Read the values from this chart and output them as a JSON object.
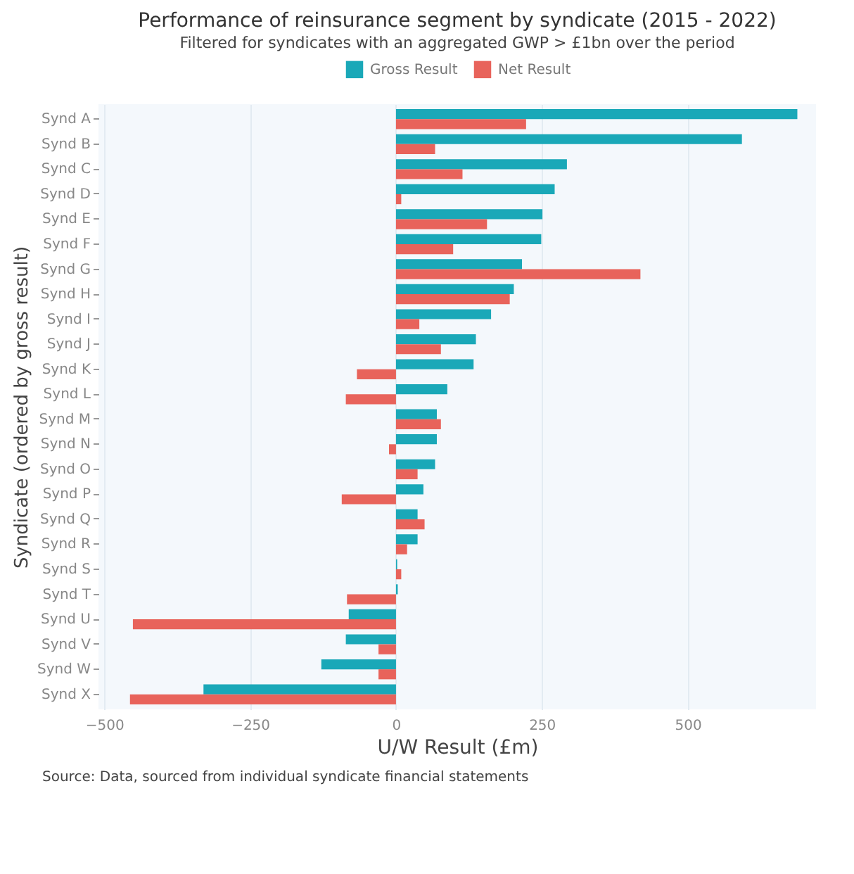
{
  "chart_data": {
    "type": "bar",
    "orientation": "horizontal",
    "title": "Performance of reinsurance segment by syndicate (2015 - 2022)",
    "subtitle": "Filtered for syndicates with an aggregated GWP > £1bn over the period",
    "xlabel": "U/W Result (£m)",
    "ylabel": "Syndicate (ordered by gross result)",
    "categories": [
      "Synd A",
      "Synd B",
      "Synd C",
      "Synd D",
      "Synd E",
      "Synd F",
      "Synd G",
      "Synd H",
      "Synd I",
      "Synd J",
      "Synd K",
      "Synd L",
      "Synd M",
      "Synd N",
      "Synd O",
      "Synd P",
      "Synd Q",
      "Synd R",
      "Synd S",
      "Synd T",
      "Synd U",
      "Synd V",
      "Synd W",
      "Synd X"
    ],
    "series": [
      {
        "name": "Gross Result",
        "color": "#1aa8b8",
        "values": [
          688,
          593,
          293,
          272,
          251,
          249,
          216,
          202,
          163,
          137,
          133,
          88,
          70,
          70,
          67,
          47,
          37,
          37,
          2,
          3,
          -81,
          -86,
          -128,
          -330
        ]
      },
      {
        "name": "Net Result",
        "color": "#e8635b",
        "values": [
          223,
          67,
          114,
          9,
          156,
          98,
          419,
          195,
          40,
          77,
          -67,
          -86,
          77,
          -12,
          37,
          -93,
          49,
          19,
          9,
          -84,
          -451,
          -30,
          -30,
          -456
        ]
      }
    ],
    "xlim": [
      -510,
      720
    ],
    "xticks": [
      -500,
      -250,
      0,
      250,
      500
    ],
    "grid": "x",
    "legend": "top",
    "annotations": [
      "Source: Data, sourced from individual syndicate financial statements"
    ]
  }
}
